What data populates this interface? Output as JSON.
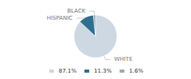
{
  "chart_data": {
    "type": "pie",
    "categories": [
      "WHITE",
      "HISPANIC",
      "BLACK"
    ],
    "values": [
      87.1,
      11.3,
      1.6
    ],
    "value_labels": [
      "87.1%",
      "11.3%",
      "1.6%"
    ],
    "colors": [
      "#cdd8e3",
      "#2e6f8e",
      "#9baab5"
    ],
    "legend": "bottom"
  }
}
